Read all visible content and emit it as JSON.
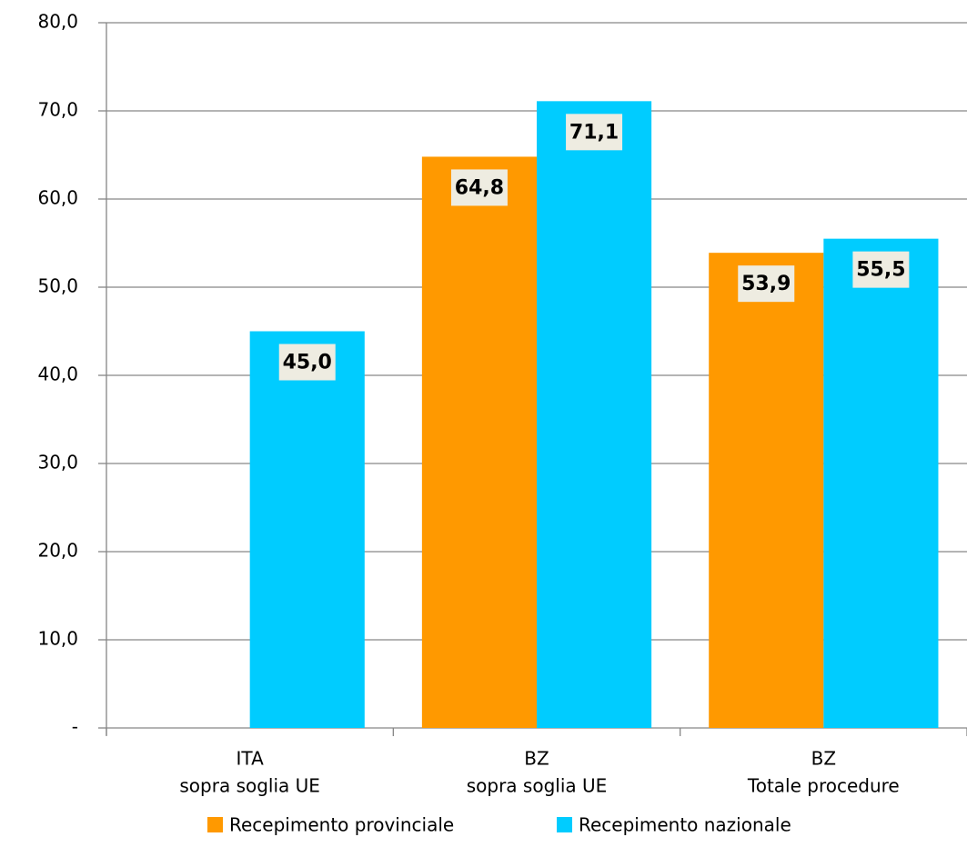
{
  "chart_data": {
    "type": "bar",
    "categories": [
      [
        "ITA",
        "sopra soglia UE"
      ],
      [
        "BZ",
        "sopra soglia UE"
      ],
      [
        "BZ",
        "Totale procedure"
      ]
    ],
    "series": [
      {
        "name": "Recepimento provinciale",
        "color": "#FF9900",
        "values": [
          null,
          64.8,
          53.9
        ],
        "value_labels": [
          null,
          "64,8",
          "53,9"
        ]
      },
      {
        "name": "Recepimento nazionale",
        "color": "#00CCFF",
        "values": [
          45.0,
          71.1,
          55.5
        ],
        "value_labels": [
          "45,0",
          "71,1",
          "55,5"
        ]
      }
    ],
    "ylim": [
      0,
      80
    ],
    "yticks": [
      {
        "value": 0,
        "label": "-"
      },
      {
        "value": 10,
        "label": "10,0"
      },
      {
        "value": 20,
        "label": "20,0"
      },
      {
        "value": 30,
        "label": "30,0"
      },
      {
        "value": 40,
        "label": "40,0"
      },
      {
        "value": 50,
        "label": "50,0"
      },
      {
        "value": 60,
        "label": "60,0"
      },
      {
        "value": 70,
        "label": "70,0"
      },
      {
        "value": 80,
        "label": "80,0"
      }
    ],
    "grid": true,
    "legend": "bottom"
  }
}
